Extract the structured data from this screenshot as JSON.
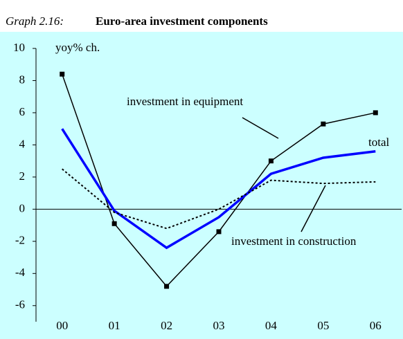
{
  "chart_data": {
    "type": "line",
    "title_prefix": "Graph 2.16:",
    "title": "Euro-area investment components",
    "y_label": "yoy% ch.",
    "categories": [
      "00",
      "01",
      "02",
      "03",
      "04",
      "05",
      "06"
    ],
    "series": [
      {
        "name": "investment in equipment",
        "color": "#000000",
        "values": [
          8.4,
          -0.9,
          -4.8,
          -1.4,
          3.0,
          5.3,
          6.0
        ]
      },
      {
        "name": "total",
        "color": "#0000ff",
        "values": [
          5.0,
          -0.1,
          -2.4,
          -0.5,
          2.2,
          3.2,
          3.6
        ]
      },
      {
        "name": "investment in construction",
        "color": "#000000",
        "values": [
          2.5,
          -0.2,
          -1.2,
          0.0,
          1.8,
          1.6,
          1.7
        ]
      }
    ],
    "ylim": [
      -7,
      10
    ],
    "yticks": [
      -6,
      -4,
      -2,
      0,
      2,
      4,
      6,
      8,
      10
    ]
  }
}
